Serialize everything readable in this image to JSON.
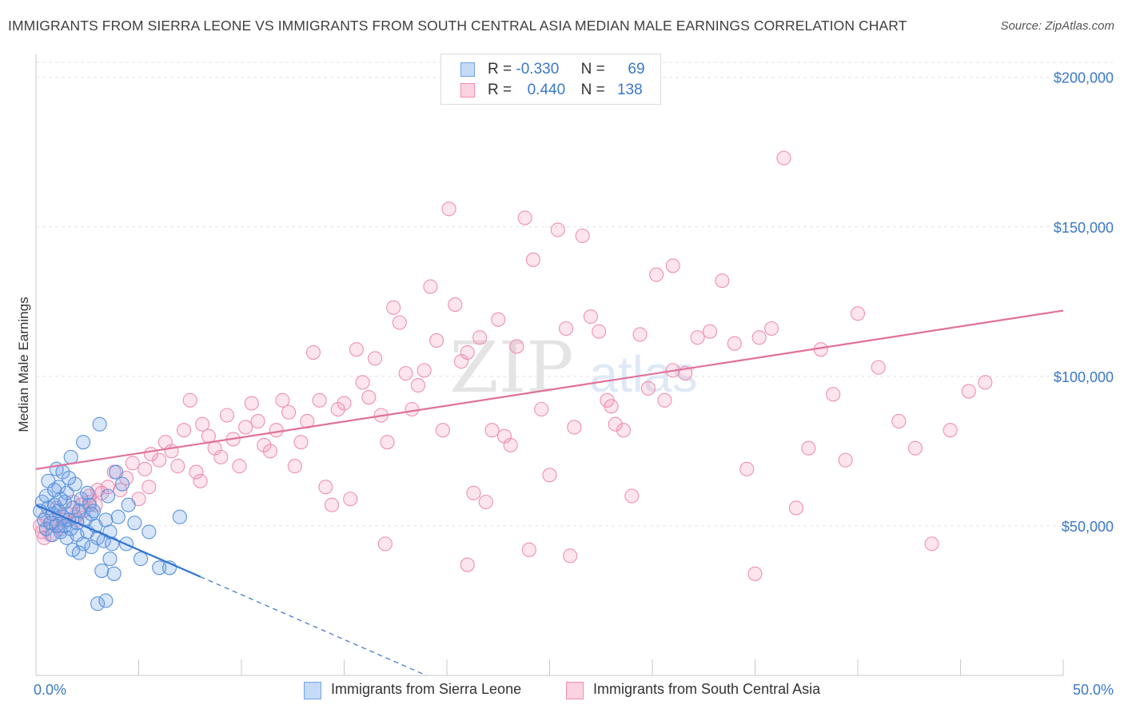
{
  "title": "IMMIGRANTS FROM SIERRA LEONE VS IMMIGRANTS FROM SOUTH CENTRAL ASIA MEDIAN MALE EARNINGS CORRELATION CHART",
  "source": "Source: ZipAtlas.com",
  "watermark": {
    "zip": "ZIP",
    "atlas": "atlas"
  },
  "legend": {
    "rows": [
      {
        "r_label": "R =",
        "r_value": "-0.330",
        "n_label": "N =",
        "n_value": "69",
        "color": "#6fa3e6"
      },
      {
        "r_label": "R =",
        "r_value": "0.440",
        "n_label": "N =",
        "n_value": "138",
        "color": "#f08aac"
      }
    ]
  },
  "chart_data": {
    "type": "scatter",
    "title": "IMMIGRANTS FROM SIERRA LEONE VS IMMIGRANTS FROM SOUTH CENTRAL ASIA MEDIAN MALE EARNINGS CORRELATION CHART",
    "ylabel": "Median Male Earnings",
    "xlabel": "",
    "xlim": [
      0,
      50
    ],
    "ylim": [
      0,
      205000
    ],
    "x_tick_labels": [
      "0.0%",
      "50.0%"
    ],
    "y_ticks": [
      50000,
      100000,
      150000,
      200000
    ],
    "y_tick_labels": [
      "$50,000",
      "$100,000",
      "$150,000",
      "$200,000"
    ],
    "grid": true,
    "legend_position": "top-center",
    "series": [
      {
        "name": "Immigrants from Sierra Leone",
        "color": "#6fa3e6",
        "trend": {
          "x0": 0,
          "y0": 57000,
          "x1": 8,
          "y1": 33000,
          "dashed_to_x": 19
        },
        "points": [
          [
            0.2,
            55000
          ],
          [
            0.3,
            58000
          ],
          [
            0.4,
            52000
          ],
          [
            0.5,
            60000
          ],
          [
            0.5,
            49000
          ],
          [
            0.6,
            65000
          ],
          [
            0.6,
            56000
          ],
          [
            0.7,
            51000
          ],
          [
            0.8,
            54000
          ],
          [
            0.8,
            47000
          ],
          [
            0.9,
            57000
          ],
          [
            1.0,
            69000
          ],
          [
            1.0,
            50000
          ],
          [
            1.1,
            63000
          ],
          [
            1.1,
            55000
          ],
          [
            1.2,
            48000
          ],
          [
            1.3,
            53000
          ],
          [
            1.3,
            68000
          ],
          [
            1.4,
            58000
          ],
          [
            1.5,
            46000
          ],
          [
            1.5,
            61000
          ],
          [
            1.6,
            52000
          ],
          [
            1.7,
            73000
          ],
          [
            1.7,
            49000
          ],
          [
            1.8,
            56000
          ],
          [
            1.8,
            42000
          ],
          [
            1.9,
            64000
          ],
          [
            2.0,
            51000
          ],
          [
            2.0,
            47000
          ],
          [
            2.1,
            55000
          ],
          [
            2.2,
            59000
          ],
          [
            2.3,
            78000
          ],
          [
            2.3,
            44000
          ],
          [
            2.4,
            52000
          ],
          [
            2.5,
            48000
          ],
          [
            2.6,
            57000
          ],
          [
            2.7,
            43000
          ],
          [
            2.8,
            55000
          ],
          [
            2.9,
            50000
          ],
          [
            3.0,
            46000
          ],
          [
            3.1,
            84000
          ],
          [
            3.2,
            35000
          ],
          [
            3.3,
            45000
          ],
          [
            3.4,
            52000
          ],
          [
            3.5,
            60000
          ],
          [
            3.6,
            39000
          ],
          [
            3.7,
            44000
          ],
          [
            3.8,
            34000
          ],
          [
            3.9,
            68000
          ],
          [
            4.0,
            53000
          ],
          [
            4.2,
            64000
          ],
          [
            4.5,
            57000
          ],
          [
            4.8,
            51000
          ],
          [
            5.1,
            39000
          ],
          [
            5.5,
            48000
          ],
          [
            6.0,
            36000
          ],
          [
            6.5,
            36000
          ],
          [
            7.0,
            53000
          ],
          [
            3.0,
            24000
          ],
          [
            3.4,
            25000
          ],
          [
            2.1,
            41000
          ],
          [
            1.6,
            66000
          ],
          [
            0.9,
            62000
          ],
          [
            1.2,
            59000
          ],
          [
            2.7,
            54000
          ],
          [
            3.6,
            48000
          ],
          [
            4.4,
            44000
          ],
          [
            1.4,
            50000
          ],
          [
            2.5,
            61000
          ]
        ]
      },
      {
        "name": "Immigrants from South Central Asia",
        "color": "#f08aac",
        "trend": {
          "x0": 0,
          "y0": 69000,
          "x1": 50,
          "y1": 122000
        },
        "points": [
          [
            0.3,
            48000
          ],
          [
            0.5,
            53000
          ],
          [
            0.8,
            51000
          ],
          [
            1.0,
            56000
          ],
          [
            1.2,
            49000
          ],
          [
            1.5,
            54000
          ],
          [
            1.8,
            58000
          ],
          [
            2.0,
            52000
          ],
          [
            2.3,
            55000
          ],
          [
            2.6,
            60000
          ],
          [
            2.9,
            57000
          ],
          [
            3.2,
            61000
          ],
          [
            3.5,
            63000
          ],
          [
            3.8,
            68000
          ],
          [
            4.1,
            62000
          ],
          [
            4.4,
            66000
          ],
          [
            4.7,
            71000
          ],
          [
            5.0,
            59000
          ],
          [
            5.3,
            69000
          ],
          [
            5.6,
            74000
          ],
          [
            6.0,
            72000
          ],
          [
            6.3,
            78000
          ],
          [
            6.6,
            75000
          ],
          [
            6.9,
            70000
          ],
          [
            7.2,
            82000
          ],
          [
            7.5,
            92000
          ],
          [
            7.8,
            68000
          ],
          [
            8.1,
            84000
          ],
          [
            8.4,
            80000
          ],
          [
            8.7,
            76000
          ],
          [
            9.0,
            73000
          ],
          [
            9.3,
            87000
          ],
          [
            9.6,
            79000
          ],
          [
            9.9,
            70000
          ],
          [
            10.2,
            83000
          ],
          [
            10.5,
            91000
          ],
          [
            10.8,
            85000
          ],
          [
            11.1,
            77000
          ],
          [
            11.4,
            75000
          ],
          [
            11.7,
            82000
          ],
          [
            12.0,
            92000
          ],
          [
            12.3,
            88000
          ],
          [
            12.6,
            70000
          ],
          [
            12.9,
            78000
          ],
          [
            13.2,
            85000
          ],
          [
            13.5,
            108000
          ],
          [
            13.8,
            92000
          ],
          [
            14.1,
            63000
          ],
          [
            14.4,
            57000
          ],
          [
            14.7,
            89000
          ],
          [
            15.0,
            91000
          ],
          [
            15.3,
            59000
          ],
          [
            15.6,
            109000
          ],
          [
            15.9,
            98000
          ],
          [
            16.2,
            93000
          ],
          [
            16.5,
            106000
          ],
          [
            16.8,
            87000
          ],
          [
            17.1,
            78000
          ],
          [
            17.4,
            123000
          ],
          [
            17.7,
            118000
          ],
          [
            18.0,
            101000
          ],
          [
            18.3,
            89000
          ],
          [
            18.6,
            97000
          ],
          [
            18.9,
            102000
          ],
          [
            19.2,
            130000
          ],
          [
            19.5,
            112000
          ],
          [
            19.8,
            82000
          ],
          [
            20.1,
            156000
          ],
          [
            20.4,
            124000
          ],
          [
            20.7,
            105000
          ],
          [
            21.0,
            108000
          ],
          [
            21.3,
            61000
          ],
          [
            21.6,
            113000
          ],
          [
            21.9,
            58000
          ],
          [
            22.2,
            82000
          ],
          [
            22.5,
            119000
          ],
          [
            22.8,
            80000
          ],
          [
            23.1,
            77000
          ],
          [
            23.4,
            110000
          ],
          [
            23.8,
            153000
          ],
          [
            24.2,
            139000
          ],
          [
            24.6,
            89000
          ],
          [
            25.0,
            67000
          ],
          [
            25.4,
            149000
          ],
          [
            25.8,
            116000
          ],
          [
            26.2,
            83000
          ],
          [
            26.6,
            147000
          ],
          [
            27.0,
            120000
          ],
          [
            27.4,
            115000
          ],
          [
            27.8,
            92000
          ],
          [
            28.2,
            84000
          ],
          [
            28.6,
            82000
          ],
          [
            29.0,
            60000
          ],
          [
            29.4,
            114000
          ],
          [
            29.8,
            96000
          ],
          [
            30.2,
            134000
          ],
          [
            30.6,
            92000
          ],
          [
            31.0,
            137000
          ],
          [
            31.6,
            101000
          ],
          [
            32.2,
            113000
          ],
          [
            32.8,
            115000
          ],
          [
            33.4,
            132000
          ],
          [
            34.0,
            111000
          ],
          [
            34.6,
            69000
          ],
          [
            35.2,
            113000
          ],
          [
            35.8,
            116000
          ],
          [
            36.4,
            173000
          ],
          [
            37.0,
            56000
          ],
          [
            37.6,
            76000
          ],
          [
            38.2,
            109000
          ],
          [
            38.8,
            94000
          ],
          [
            39.4,
            72000
          ],
          [
            40.0,
            121000
          ],
          [
            41.0,
            103000
          ],
          [
            42.0,
            85000
          ],
          [
            42.8,
            76000
          ],
          [
            43.6,
            44000
          ],
          [
            44.5,
            82000
          ],
          [
            45.4,
            95000
          ],
          [
            46.2,
            98000
          ],
          [
            35.0,
            34000
          ],
          [
            26.0,
            40000
          ],
          [
            21.0,
            37000
          ],
          [
            17.0,
            44000
          ],
          [
            24.0,
            42000
          ],
          [
            28.0,
            90000
          ],
          [
            31.0,
            102000
          ],
          [
            8.0,
            65000
          ],
          [
            5.5,
            63000
          ],
          [
            3.0,
            62000
          ],
          [
            2.2,
            57000
          ],
          [
            1.4,
            52000
          ],
          [
            1.1,
            50000
          ],
          [
            0.7,
            47000
          ],
          [
            0.4,
            46000
          ],
          [
            0.2,
            50000
          ],
          [
            1.9,
            53000
          ],
          [
            2.6,
            58000
          ]
        ]
      }
    ]
  },
  "bottom_legend": {
    "items": [
      {
        "label": "Immigrants from Sierra Leone",
        "color": "#6fa3e6"
      },
      {
        "label": "Immigrants from South Central Asia",
        "color": "#f08aac"
      }
    ]
  }
}
